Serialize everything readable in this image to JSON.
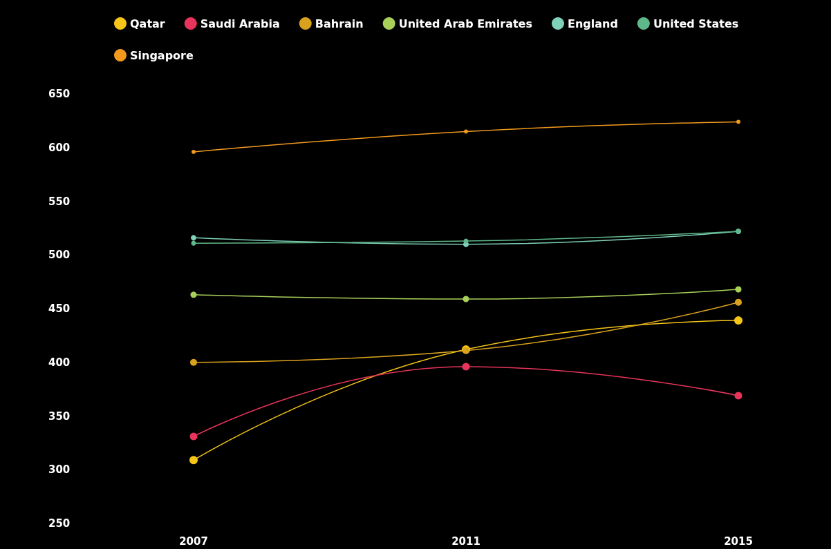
{
  "chart_data": {
    "type": "line",
    "categories": [
      "2007",
      "2011",
      "2015"
    ],
    "series": [
      {
        "name": "Qatar",
        "color": "#f5c518",
        "values": [
          309,
          412,
          439
        ]
      },
      {
        "name": "Saudi Arabia",
        "color": "#e8345a",
        "values": [
          331,
          396,
          369
        ]
      },
      {
        "name": "Bahrain",
        "color": "#d9a21e",
        "values": [
          400,
          411,
          456
        ]
      },
      {
        "name": "United Arab Emirates",
        "color": "#a9d15a",
        "values": [
          463,
          459,
          468
        ]
      },
      {
        "name": "England",
        "color": "#7fd1b9",
        "values": [
          516,
          510,
          522
        ]
      },
      {
        "name": "United States",
        "color": "#5fb88a",
        "values": [
          511,
          513,
          522
        ]
      },
      {
        "name": "Singapore",
        "color": "#f39a1e",
        "values": [
          596,
          615,
          624
        ]
      }
    ],
    "ylim": [
      250,
      650
    ],
    "yticks": [
      250,
      300,
      350,
      400,
      450,
      500,
      550,
      600,
      650
    ],
    "grid": false,
    "legend": "top",
    "marker": "circle",
    "line_style": "solid"
  }
}
